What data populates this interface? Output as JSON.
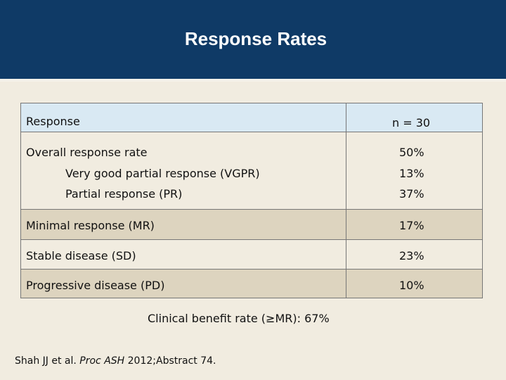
{
  "title": "Response Rates",
  "table": {
    "header": {
      "label": "Response",
      "value": "n = 30"
    },
    "group": {
      "overall": {
        "label": "Overall response rate",
        "value": "50%"
      },
      "vgpr": {
        "label": "Very good partial response (VGPR)",
        "value": "13%"
      },
      "pr": {
        "label": "Partial response (PR)",
        "value": "37%"
      }
    },
    "rows": [
      {
        "label": "Minimal response (MR)",
        "value": "17%"
      },
      {
        "label": "Stable disease (SD)",
        "value": "23%"
      },
      {
        "label": "Progressive disease (PD)",
        "value": "10%"
      }
    ]
  },
  "clinical_benefit": "Clinical benefit rate (≥MR): 67%",
  "citation": {
    "authors": "Shah JJ et al. ",
    "journal": "Proc ASH",
    "rest": " 2012;Abstract 74."
  },
  "colors": {
    "header_bg": "#0f3a66",
    "table_header_bg": "#d9e9f3",
    "row_tan": "#ddd4bf",
    "page_bg": "#f1ece0"
  }
}
